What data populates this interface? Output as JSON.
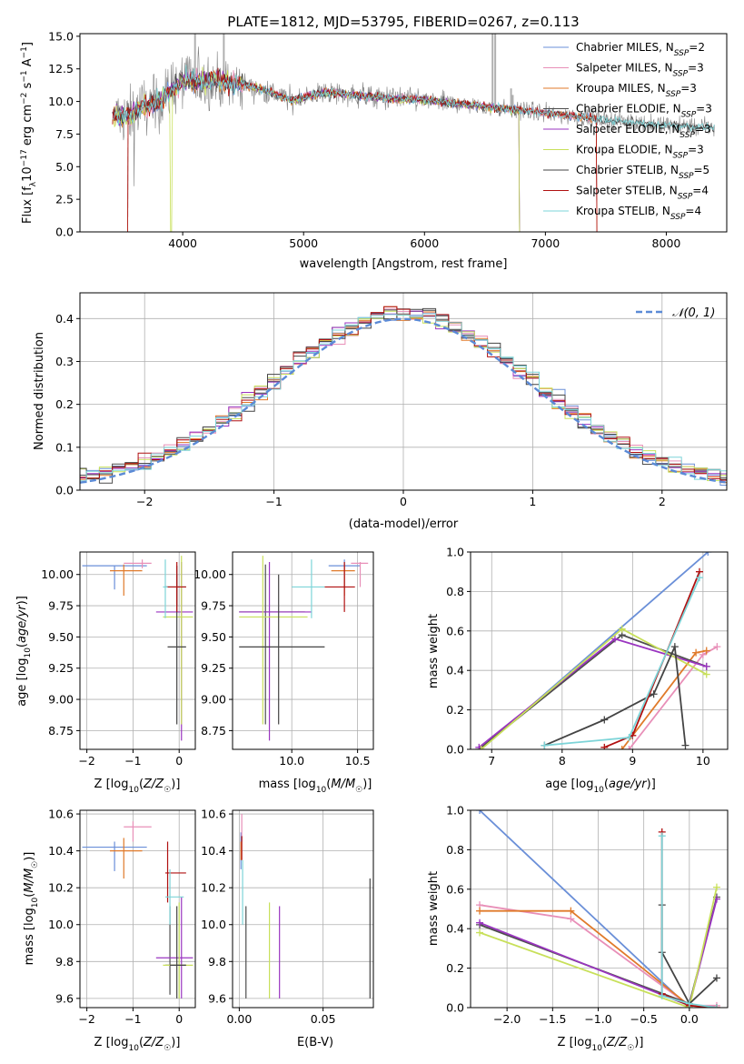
{
  "colors": [
    "#6a8fd8",
    "#e88fb8",
    "#e07a2a",
    "#4d4d4d",
    "#9a35c0",
    "#c8e05a",
    "#444444",
    "#b01010",
    "#7dd4d8"
  ],
  "chart_data": [
    {
      "id": "spectrum",
      "type": "line",
      "title": "PLATE=1812, MJD=53795, FIBERID=0267, z=0.113",
      "xlabel": "wavelength [Angstrom, rest frame]",
      "ylabel": "Flux [f_λ 10^-17 erg cm^-2 s^-1 A^-1]",
      "xlim": [
        3150,
        8500
      ],
      "ylim": [
        0,
        15.2
      ],
      "xticks": [
        "4000",
        "5000",
        "6000",
        "7000",
        "8000"
      ],
      "yticks": [
        "0.0",
        "2.5",
        "5.0",
        "7.5",
        "10.0",
        "12.5",
        "15.0"
      ],
      "legend_position": "upper right",
      "legend": [
        {
          "prefix": "Chabrier MILES, N",
          "sub": "SSP",
          "suffix": "=2"
        },
        {
          "prefix": "Salpeter MILES, N",
          "sub": "SSP",
          "suffix": "=3"
        },
        {
          "prefix": "Kroupa MILES, N",
          "sub": "SSP",
          "suffix": "=3"
        },
        {
          "prefix": "Chabrier ELODIE, N",
          "sub": "SSP",
          "suffix": "=3"
        },
        {
          "prefix": "Salpeter ELODIE, N",
          "sub": "SSP",
          "suffix": "=3"
        },
        {
          "prefix": "Kroupa ELODIE, N",
          "sub": "SSP",
          "suffix": "=3"
        },
        {
          "prefix": "Chabrier STELIB, N",
          "sub": "SSP",
          "suffix": "=5"
        },
        {
          "prefix": "Salpeter STELIB, N",
          "sub": "SSP",
          "suffix": "=4"
        },
        {
          "prefix": "Kroupa STELIB, N",
          "sub": "SSP",
          "suffix": "=4"
        }
      ],
      "series": [
        {
          "name": "Chabrier MILES",
          "x": [
            3540,
            3550,
            3600,
            3800,
            4000,
            4200,
            4500,
            4700,
            4900,
            5200,
            5500,
            5800,
            6000,
            6300,
            6600,
            6900,
            7100,
            7300,
            7420,
            7430
          ],
          "y": [
            0,
            9.2,
            9.0,
            9.8,
            11.5,
            11.8,
            11.2,
            10.9,
            10.2,
            10.6,
            10.4,
            10.2,
            10.1,
            9.8,
            9.5,
            9.2,
            9.0,
            8.8,
            8.6,
            0
          ]
        },
        {
          "name": "Kroupa ELODIE",
          "x": [
            3540,
            3550,
            3600,
            3800,
            3900,
            3905,
            3910,
            3950,
            4100,
            4200,
            4500,
            4700,
            4900,
            5200,
            5500,
            5800,
            6000,
            6300,
            6600,
            6780,
            6785
          ],
          "y": [
            0,
            8.8,
            8.7,
            9.8,
            10.2,
            0,
            10.5,
            11.0,
            12.8,
            13.0,
            12.0,
            11.5,
            10.5,
            10.7,
            10.5,
            10.3,
            10.2,
            10.0,
            9.6,
            9.4,
            0
          ]
        },
        {
          "name": "Kroupa STELIB",
          "x": [
            3400,
            3500,
            3600,
            3800,
            4000,
            4200,
            4500,
            4700,
            4900,
            5200,
            5500,
            5800,
            6000,
            6300,
            6600,
            6900,
            7100,
            7300,
            7500,
            7700,
            8000,
            8200,
            8400
          ],
          "y": [
            9.0,
            8.8,
            9.2,
            10.0,
            11.6,
            11.6,
            11.3,
            10.8,
            10.1,
            10.7,
            10.4,
            10.2,
            10.1,
            9.8,
            9.5,
            9.2,
            9.0,
            8.8,
            8.6,
            8.4,
            8.2,
            8.1,
            7.9
          ]
        }
      ]
    },
    {
      "id": "residuals",
      "type": "line",
      "xlabel": "(data-model)/error",
      "ylabel": "Normed distribution",
      "xlim": [
        -2.5,
        2.5
      ],
      "ylim": [
        0,
        0.46
      ],
      "xticks": [
        "−2",
        "−1",
        "0",
        "1",
        "2"
      ],
      "yticks": [
        "0.0",
        "0.1",
        "0.2",
        "0.3",
        "0.4"
      ],
      "legend_position": "upper right",
      "legend": [
        {
          "label": "𝒩(0, 1)"
        }
      ],
      "series": [
        {
          "name": "𝒩(0, 1)",
          "mean": 0,
          "sigma": 1
        }
      ]
    },
    {
      "id": "age-vs-z",
      "type": "scatter",
      "xlabel": "Z [log10(Z/Z☉)]",
      "ylabel": "age  [log10(age/yr)]",
      "xlim": [
        -2.15,
        0.35
      ],
      "ylim": [
        8.6,
        10.18
      ],
      "xticks": [
        "−2",
        "−1",
        "0"
      ],
      "yticks": [
        "8.75",
        "9.00",
        "9.25",
        "9.50",
        "9.75",
        "10.00"
      ],
      "points": [
        {
          "c": 0,
          "x": -1.4,
          "y": 10.07,
          "xlo": -2.1,
          "xhi": -0.7,
          "ylo": 9.88,
          "yhi": 10.07
        },
        {
          "c": 1,
          "x": -0.8,
          "y": 10.09,
          "xlo": -1.2,
          "xhi": -0.6,
          "ylo": 10.05,
          "yhi": 10.12
        },
        {
          "c": 2,
          "x": -1.2,
          "y": 10.03,
          "xlo": -1.5,
          "xhi": -0.8,
          "ylo": 9.83,
          "yhi": 10.08
        },
        {
          "c": 3,
          "x": -0.05,
          "y": 9.9,
          "xlo": -0.3,
          "xhi": 0.15,
          "ylo": 9.75,
          "yhi": 10.07
        },
        {
          "c": 4,
          "x": 0.05,
          "y": 9.7,
          "xlo": -0.5,
          "xhi": 0.3,
          "ylo": 8.67,
          "yhi": 10.1
        },
        {
          "c": 5,
          "x": 0.05,
          "y": 9.66,
          "xlo": -0.35,
          "xhi": 0.3,
          "ylo": 8.8,
          "yhi": 10.15
        },
        {
          "c": 6,
          "x": -0.05,
          "y": 9.42,
          "xlo": -0.25,
          "xhi": 0.15,
          "ylo": 8.8,
          "yhi": 10.0
        },
        {
          "c": 7,
          "x": -0.05,
          "y": 9.9,
          "xlo": -0.3,
          "xhi": 0.15,
          "ylo": 9.7,
          "yhi": 10.1
        },
        {
          "c": 8,
          "x": -0.3,
          "y": 9.9,
          "xlo": -0.35,
          "xhi": -0.25,
          "ylo": 9.65,
          "yhi": 10.12
        }
      ]
    },
    {
      "id": "age-vs-mass",
      "type": "scatter",
      "xlabel": "mass [log10(M/M☉)]",
      "ylabel": "",
      "xlim": [
        9.55,
        10.62
      ],
      "ylim": [
        8.6,
        10.18
      ],
      "xticks": [
        "10.0",
        "10.5"
      ],
      "yticks": [
        "8.75",
        "9.00",
        "9.25",
        "9.50",
        "9.75",
        "10.00"
      ],
      "points": [
        {
          "c": 0,
          "x": 10.4,
          "y": 10.07,
          "xlo": 10.28,
          "xhi": 10.52,
          "ylo": 9.88,
          "yhi": 10.12
        },
        {
          "c": 1,
          "x": 10.52,
          "y": 10.09,
          "xlo": 10.45,
          "xhi": 10.58,
          "ylo": 9.9,
          "yhi": 10.1
        },
        {
          "c": 2,
          "x": 10.4,
          "y": 10.03,
          "xlo": 10.3,
          "xhi": 10.48,
          "ylo": 9.83,
          "yhi": 10.08
        },
        {
          "c": 3,
          "x": 9.8,
          "y": 9.7,
          "xlo": 9.6,
          "xhi": 10.1,
          "ylo": 8.8,
          "yhi": 10.08
        },
        {
          "c": 4,
          "x": 9.83,
          "y": 9.7,
          "xlo": 9.6,
          "xhi": 10.15,
          "ylo": 8.67,
          "yhi": 10.1
        },
        {
          "c": 5,
          "x": 9.78,
          "y": 9.66,
          "xlo": 9.6,
          "xhi": 10.12,
          "ylo": 8.8,
          "yhi": 10.15
        },
        {
          "c": 6,
          "x": 9.9,
          "y": 9.42,
          "xlo": 9.6,
          "xhi": 10.25,
          "ylo": 8.8,
          "yhi": 10.0
        },
        {
          "c": 7,
          "x": 10.4,
          "y": 9.9,
          "xlo": 10.25,
          "xhi": 10.48,
          "ylo": 9.7,
          "yhi": 10.1
        },
        {
          "c": 8,
          "x": 10.15,
          "y": 9.9,
          "xlo": 10.0,
          "xhi": 10.25,
          "ylo": 9.65,
          "yhi": 10.12
        }
      ]
    },
    {
      "id": "weight-vs-age",
      "type": "line",
      "xlabel": "age  [log10(age/yr)]",
      "ylabel": "mass weight",
      "xlim": [
        6.7,
        10.35
      ],
      "ylim": [
        0,
        1.0
      ],
      "xticks": [
        "7",
        "8",
        "9",
        "10"
      ],
      "yticks": [
        "0.0",
        "0.2",
        "0.4",
        "0.6",
        "0.8",
        "1.0"
      ],
      "series": [
        {
          "c": 0,
          "x": [
            6.85,
            10.07
          ],
          "y": [
            0.0,
            1.0
          ]
        },
        {
          "c": 1,
          "x": [
            8.95,
            10.0,
            10.2
          ],
          "y": [
            0.0,
            0.48,
            0.52
          ]
        },
        {
          "c": 2,
          "x": [
            8.85,
            9.9,
            10.05
          ],
          "y": [
            0.0,
            0.49,
            0.5
          ]
        },
        {
          "c": 3,
          "x": [
            6.82,
            8.85,
            10.05
          ],
          "y": [
            0.0,
            0.58,
            0.42
          ]
        },
        {
          "c": 4,
          "x": [
            6.82,
            8.75,
            10.05
          ],
          "y": [
            0.01,
            0.56,
            0.42
          ]
        },
        {
          "c": 5,
          "x": [
            6.85,
            8.85,
            10.05
          ],
          "y": [
            0.0,
            0.61,
            0.38
          ]
        },
        {
          "c": 6,
          "x": [
            7.75,
            8.6,
            9.3,
            9.6,
            9.75
          ],
          "y": [
            0.02,
            0.15,
            0.28,
            0.52,
            0.02
          ]
        },
        {
          "c": 7,
          "x": [
            8.6,
            9.0,
            9.95
          ],
          "y": [
            0.01,
            0.07,
            0.9
          ]
        },
        {
          "c": 8,
          "x": [
            7.75,
            8.95,
            9.95
          ],
          "y": [
            0.02,
            0.06,
            0.87
          ]
        }
      ]
    },
    {
      "id": "mass-vs-z",
      "type": "scatter",
      "xlabel": "Z [log10(Z/Z☉)]",
      "ylabel": "mass [log10(M/M☉)]",
      "xlim": [
        -2.15,
        0.35
      ],
      "ylim": [
        9.55,
        10.62
      ],
      "xticks": [
        "−2",
        "−1",
        "0"
      ],
      "yticks": [
        "9.6",
        "9.8",
        "10.0",
        "10.2",
        "10.4",
        "10.6"
      ],
      "points": [
        {
          "c": 0,
          "x": -1.4,
          "y": 10.42,
          "xlo": -2.1,
          "xhi": -0.7,
          "ylo": 10.29,
          "yhi": 10.45
        },
        {
          "c": 1,
          "x": -1.0,
          "y": 10.53,
          "xlo": -1.2,
          "xhi": -0.6,
          "ylo": 10.45,
          "yhi": 10.56
        },
        {
          "c": 2,
          "x": -1.2,
          "y": 10.4,
          "xlo": -1.5,
          "xhi": -0.8,
          "ylo": 10.25,
          "yhi": 10.47
        },
        {
          "c": 3,
          "x": -0.2,
          "y": 9.78,
          "xlo": -0.3,
          "xhi": 0.15,
          "ylo": 9.62,
          "yhi": 10.1
        },
        {
          "c": 4,
          "x": 0.05,
          "y": 9.82,
          "xlo": -0.5,
          "xhi": 0.3,
          "ylo": 9.6,
          "yhi": 10.15
        },
        {
          "c": 5,
          "x": 0.0,
          "y": 9.78,
          "xlo": -0.35,
          "xhi": 0.3,
          "ylo": 9.6,
          "yhi": 10.12
        },
        {
          "c": 6,
          "x": -0.05,
          "y": 9.78,
          "xlo": -0.2,
          "xhi": 0.15,
          "ylo": 9.6,
          "yhi": 10.1
        },
        {
          "c": 7,
          "x": -0.25,
          "y": 10.28,
          "xlo": -0.3,
          "xhi": 0.15,
          "ylo": 10.12,
          "yhi": 10.45
        },
        {
          "c": 8,
          "x": -0.2,
          "y": 10.15,
          "xlo": -0.3,
          "xhi": 0.1,
          "ylo": 10.0,
          "yhi": 10.3
        }
      ]
    },
    {
      "id": "mass-vs-ebv",
      "type": "scatter",
      "xlabel": "E(B-V)",
      "ylabel": "",
      "xlim": [
        -0.004,
        0.08
      ],
      "ylim": [
        9.55,
        10.62
      ],
      "xticks": [
        "0.00",
        "0.05"
      ],
      "yticks": [
        "9.6",
        "9.8",
        "10.0",
        "10.2",
        "10.4",
        "10.6"
      ],
      "points": [
        {
          "c": 0,
          "x": 0.001,
          "y": 10.42,
          "ylo": 10.3,
          "yhi": 10.5
        },
        {
          "c": 1,
          "x": 0.0015,
          "y": 10.52,
          "ylo": 10.45,
          "yhi": 10.6
        },
        {
          "c": 2,
          "x": 0.001,
          "y": 10.4,
          "ylo": 10.35,
          "yhi": 10.45
        },
        {
          "c": 3,
          "x": 0.004,
          "y": 9.8,
          "ylo": 9.6,
          "yhi": 10.1
        },
        {
          "c": 4,
          "x": 0.024,
          "y": 9.85,
          "ylo": 9.6,
          "yhi": 10.1
        },
        {
          "c": 5,
          "x": 0.018,
          "y": 9.85,
          "ylo": 9.6,
          "yhi": 10.12
        },
        {
          "c": 6,
          "x": 0.078,
          "y": 9.9,
          "ylo": 9.6,
          "yhi": 10.25
        },
        {
          "c": 7,
          "x": 0.0015,
          "y": 10.4,
          "ylo": 10.35,
          "yhi": 10.48
        },
        {
          "c": 8,
          "x": 0.002,
          "y": 10.15,
          "ylo": 10.0,
          "yhi": 10.35
        }
      ]
    },
    {
      "id": "weight-vs-z",
      "type": "line",
      "xlabel": "Z [log10(Z/Z☉)]",
      "ylabel": "mass weight",
      "xlim": [
        -2.4,
        0.42
      ],
      "ylim": [
        0,
        1.0
      ],
      "xticks": [
        "−2.0",
        "−1.5",
        "−1.0",
        "−0.5",
        "0.0"
      ],
      "yticks": [
        "0.0",
        "0.2",
        "0.4",
        "0.6",
        "0.8",
        "1.0"
      ],
      "series": [
        {
          "c": 0,
          "x": [
            -2.3,
            0.0
          ],
          "y": [
            1.0,
            0.0
          ]
        },
        {
          "c": 1,
          "x": [
            -2.3,
            -1.3,
            0.0,
            0.3
          ],
          "y": [
            0.52,
            0.45,
            0.01,
            0.01
          ]
        },
        {
          "c": 2,
          "x": [
            -2.3,
            -1.3,
            0.0,
            0.3
          ],
          "y": [
            0.49,
            0.49,
            0.01,
            0.0
          ]
        },
        {
          "c": 3,
          "x": [
            -2.3,
            0.0,
            0.3
          ],
          "y": [
            0.42,
            0.02,
            0.56
          ]
        },
        {
          "c": 4,
          "x": [
            -2.3,
            0.0,
            0.3
          ],
          "y": [
            0.43,
            0.01,
            0.55
          ]
        },
        {
          "c": 5,
          "x": [
            -2.3,
            0.0,
            0.3
          ],
          "y": [
            0.38,
            0.0,
            0.61
          ]
        },
        {
          "c": 6,
          "x": [
            -0.3,
            -0.3,
            0.0,
            0.3
          ],
          "y": [
            0.52,
            0.28,
            0.02,
            0.15
          ]
        },
        {
          "c": 7,
          "x": [
            -0.3,
            -0.3,
            0.0,
            0.3
          ],
          "y": [
            0.89,
            0.07,
            0.01,
            0.0
          ]
        },
        {
          "c": 8,
          "x": [
            -0.3,
            -0.3,
            0.0,
            0.3
          ],
          "y": [
            0.87,
            0.06,
            0.02,
            0.0
          ]
        }
      ]
    }
  ]
}
